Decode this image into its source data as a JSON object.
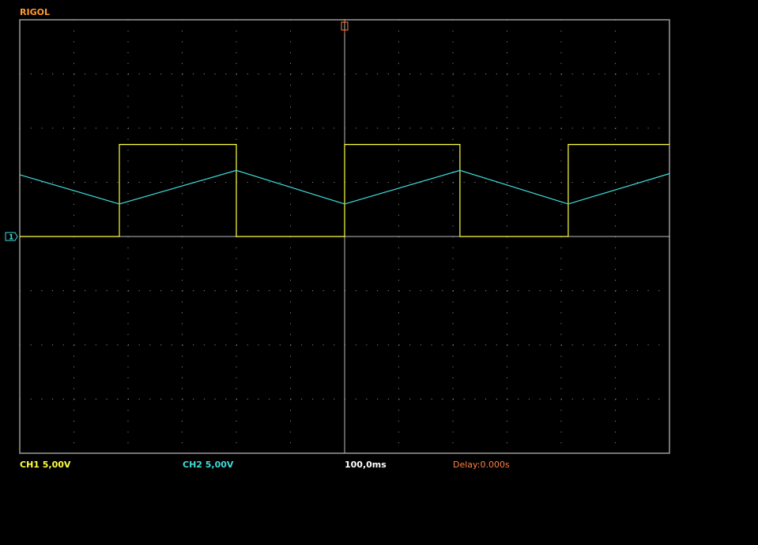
{
  "header": {
    "brand": "RIGOL"
  },
  "status": {
    "ch1": "CH1 5,00V",
    "ch2": "CH2 5,00V",
    "timebase": "100,0ms",
    "delay": "Delay:0.000s"
  },
  "chart_data": {
    "type": "line",
    "xlim": [
      -600,
      600
    ],
    "ylim": [
      -20,
      20
    ],
    "xticks": [
      -600,
      -500,
      -400,
      -300,
      -200,
      -100,
      0,
      100,
      200,
      300,
      400,
      500,
      600
    ],
    "yticks": [
      -20,
      -15,
      -10,
      -5,
      0,
      5,
      10,
      15,
      20
    ],
    "grid": true,
    "series": [
      {
        "color": "#ffff40",
        "x": [
          -600,
          -416,
          -416,
          -200,
          -200,
          0,
          0,
          213,
          213,
          413,
          413,
          600
        ],
        "values": [
          0,
          0,
          8.5,
          8.5,
          0,
          0,
          8.5,
          8.5,
          0,
          0,
          8.5,
          8.5
        ]
      },
      {
        "color": "#40dcdc",
        "x": [
          -600,
          -416,
          -200,
          0,
          213,
          413,
          600
        ],
        "values": [
          5.7,
          3.0,
          6.1,
          3.0,
          6.1,
          3.0,
          5.8
        ]
      }
    ]
  }
}
